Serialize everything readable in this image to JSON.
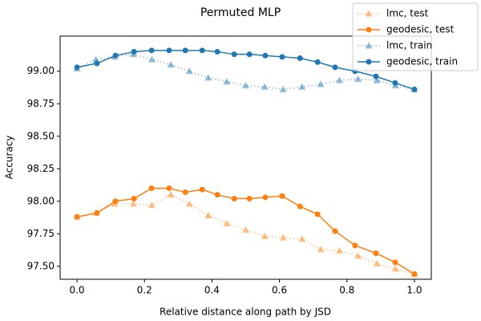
{
  "chart_data": {
    "type": "line",
    "title": "Permuted MLP",
    "x_label": "Relative distance along path by JSD",
    "y_label": "Accuracy",
    "xlim": [
      -0.05,
      1.05
    ],
    "ylim": [
      97.4,
      99.27
    ],
    "xticks": [
      {
        "value": 0,
        "label": "0.0"
      },
      {
        "value": 0.2,
        "label": "0.2"
      },
      {
        "value": 0.4,
        "label": "0.4"
      },
      {
        "value": 0.6,
        "label": "0.6"
      },
      {
        "value": 0.8,
        "label": "0.8"
      },
      {
        "value": 1,
        "label": "1.0"
      }
    ],
    "yticks": [
      {
        "value": 97.5,
        "label": "97.50"
      },
      97.75,
      {
        "value": 98,
        "label": "98.00"
      },
      98.25,
      {
        "value": 98.5,
        "label": "98.50"
      },
      98.75,
      {
        "value": 99,
        "label": "99.00"
      }
    ],
    "legend": "upper right",
    "series": [
      {
        "name": "lmc, test",
        "color": "#ff7f0e",
        "linestyle": "dotted",
        "marker": "triangle",
        "alpha": 0.5,
        "x": [
          0,
          0.056,
          0.111,
          0.167,
          0.222,
          0.278,
          0.333,
          0.389,
          0.444,
          0.5,
          0.556,
          0.611,
          0.667,
          0.722,
          0.778,
          0.833,
          0.889,
          0.944,
          1
        ],
        "values": [
          97.88,
          97.91,
          97.98,
          97.98,
          97.97,
          98.05,
          97.98,
          97.89,
          97.83,
          97.78,
          97.73,
          97.72,
          97.71,
          97.63,
          97.62,
          97.58,
          97.52,
          97.48,
          97.44
        ]
      },
      {
        "name": "geodesic, test",
        "color": "#ff7f0e",
        "linestyle": "solid",
        "marker": "circle",
        "alpha": 1,
        "x": [
          0,
          0.059,
          0.114,
          0.169,
          0.221,
          0.273,
          0.321,
          0.371,
          0.416,
          0.466,
          0.511,
          0.558,
          0.608,
          0.661,
          0.713,
          0.765,
          0.824,
          0.886,
          0.943,
          1
        ],
        "values": [
          97.88,
          97.91,
          98.0,
          98.02,
          98.1,
          98.1,
          98.07,
          98.09,
          98.05,
          98.02,
          98.02,
          98.03,
          98.04,
          97.96,
          97.9,
          97.77,
          97.66,
          97.6,
          97.53,
          97.44
        ]
      },
      {
        "name": "lmc, train",
        "color": "#1f77b4",
        "linestyle": "dotted",
        "marker": "triangle",
        "alpha": 0.5,
        "x": [
          0,
          0.056,
          0.111,
          0.167,
          0.222,
          0.278,
          0.333,
          0.389,
          0.444,
          0.5,
          0.556,
          0.611,
          0.667,
          0.722,
          0.778,
          0.833,
          0.889,
          0.944,
          1
        ],
        "values": [
          99.02,
          99.09,
          99.11,
          99.13,
          99.09,
          99.05,
          99.0,
          98.95,
          98.92,
          98.89,
          98.88,
          98.86,
          98.88,
          98.9,
          98.93,
          98.94,
          98.93,
          98.89,
          98.86
        ]
      },
      {
        "name": "geodesic, train",
        "color": "#1f77b4",
        "linestyle": "solid",
        "marker": "circle",
        "alpha": 1,
        "x": [
          0,
          0.059,
          0.114,
          0.169,
          0.221,
          0.273,
          0.321,
          0.371,
          0.416,
          0.466,
          0.511,
          0.558,
          0.608,
          0.661,
          0.713,
          0.765,
          0.824,
          0.886,
          0.943,
          1
        ],
        "values": [
          99.03,
          99.06,
          99.12,
          99.15,
          99.16,
          99.16,
          99.16,
          99.16,
          99.15,
          99.13,
          99.13,
          99.12,
          99.11,
          99.1,
          99.07,
          99.03,
          99.0,
          98.96,
          98.91,
          98.86
        ]
      }
    ]
  }
}
